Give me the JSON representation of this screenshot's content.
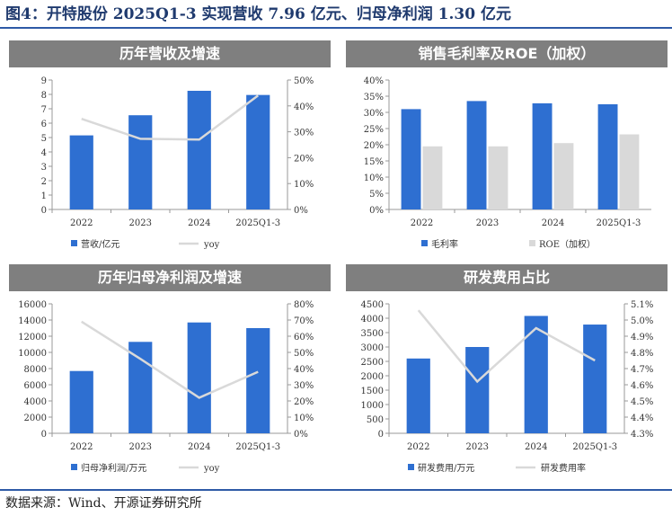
{
  "figure_title": "图4：开特股份 2025Q1-3 实现营收 7.96 亿元、归母净利润 1.30 亿元",
  "source": "数据来源：Wind、开源证券研究所",
  "colors": {
    "bar": "#2e6fd1",
    "line": "#d9d9d9",
    "bar2": "#d9d9d9",
    "axis": "#999999"
  },
  "chart_data": [
    {
      "type": "bar",
      "title": "历年营收及增速",
      "categories": [
        "2022",
        "2023",
        "2024",
        "2025Q1-3"
      ],
      "series": [
        {
          "name": "营收/亿元",
          "kind": "bar",
          "axis": "left",
          "values": [
            5.15,
            6.55,
            8.25,
            7.96
          ]
        },
        {
          "name": "yoy",
          "kind": "line",
          "axis": "right",
          "values": [
            35,
            27.3,
            27,
            44
          ]
        }
      ],
      "ylim": [
        0,
        9
      ],
      "yticks": [
        "0",
        "1",
        "2",
        "3",
        "4",
        "5",
        "6",
        "7",
        "8",
        "9"
      ],
      "y2lim": [
        0,
        50
      ],
      "y2ticks": [
        "0%",
        "10%",
        "20%",
        "30%",
        "40%",
        "50%"
      ]
    },
    {
      "type": "bar",
      "title": "销售毛利率及ROE（加权）",
      "categories": [
        "2022",
        "2023",
        "2024",
        "2025Q1-3"
      ],
      "series": [
        {
          "name": "毛利率",
          "kind": "bar",
          "axis": "left",
          "values": [
            31,
            33.5,
            32.8,
            32.5
          ]
        },
        {
          "name": "ROE（加权）",
          "kind": "bar2",
          "axis": "left",
          "values": [
            19.5,
            19.5,
            20.5,
            23.2
          ]
        }
      ],
      "ylim": [
        0,
        40
      ],
      "yticks": [
        "0%",
        "5%",
        "10%",
        "15%",
        "20%",
        "25%",
        "30%",
        "35%",
        "40%"
      ]
    },
    {
      "type": "bar",
      "title": "历年归母净利润及增速",
      "categories": [
        "2022",
        "2023",
        "2024",
        "2025Q1-3"
      ],
      "series": [
        {
          "name": "归母净利润/万元",
          "kind": "bar",
          "axis": "left",
          "values": [
            7700,
            11300,
            13700,
            13000
          ]
        },
        {
          "name": "yoy",
          "kind": "line",
          "axis": "right",
          "values": [
            69,
            46,
            22,
            38
          ]
        }
      ],
      "ylim": [
        0,
        16000
      ],
      "yticks": [
        "0",
        "2000",
        "4000",
        "6000",
        "8000",
        "10000",
        "12000",
        "14000",
        "16000"
      ],
      "y2lim": [
        0,
        80
      ],
      "y2ticks": [
        "0%",
        "10%",
        "20%",
        "30%",
        "40%",
        "50%",
        "60%",
        "70%",
        "80%"
      ]
    },
    {
      "type": "bar",
      "title": "研发费用占比",
      "categories": [
        "2022",
        "2023",
        "2024",
        "2025Q1-3"
      ],
      "series": [
        {
          "name": "研发费用/万元",
          "kind": "bar",
          "axis": "left",
          "values": [
            2600,
            3000,
            4080,
            3780
          ]
        },
        {
          "name": "研发费用率",
          "kind": "line",
          "axis": "right",
          "values": [
            5.06,
            4.62,
            4.95,
            4.75
          ]
        }
      ],
      "ylim": [
        0,
        4500
      ],
      "yticks": [
        "0",
        "500",
        "1000",
        "1500",
        "2000",
        "2500",
        "3000",
        "3500",
        "4000",
        "4500"
      ],
      "y2lim": [
        4.3,
        5.1
      ],
      "y2ticks": [
        "4.3%",
        "4.4%",
        "4.5%",
        "4.6%",
        "4.7%",
        "4.8%",
        "4.9%",
        "5.0%",
        "5.1%"
      ]
    }
  ]
}
